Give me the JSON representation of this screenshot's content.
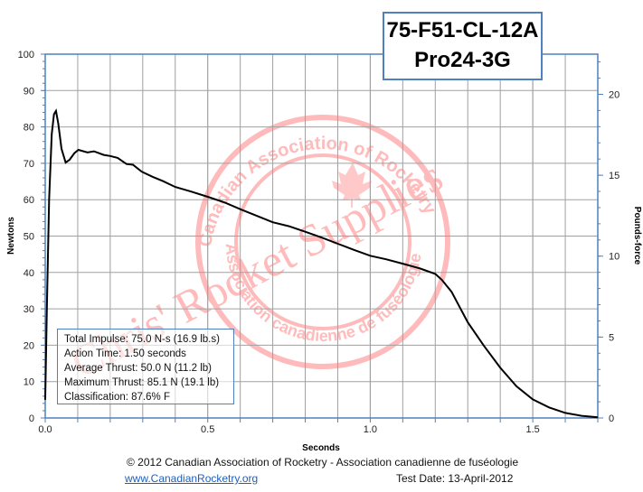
{
  "title": {
    "line1": "75-F51-CL-12A",
    "line2": "Pro24-3G"
  },
  "info": [
    "Total Impulse: 75.0 N-s (16.9 lb.s)",
    "Action Time: 1.50 seconds",
    "Average Thrust: 50.0 N (11.2 lb)",
    "Maximum Thrust: 85.1 N (19.1 lb)",
    "Classification: 87.6% F"
  ],
  "footer": {
    "copyright": "© 2012 Canadian Association of Rocketry - Association canadienne de fuséologie",
    "link": "www.CanadianRocketry.org",
    "test_date": "Test  Date: 13-April-2012"
  },
  "watermark": {
    "outer_text": "Canadian Association of Rocketry",
    "inner_text": "Association canadienne de fuséologie",
    "diagonal_text": "Chris' Rocket Supplies",
    "color": "#ff8080"
  },
  "colors": {
    "axis": "#4f81bd",
    "grid": "#a0a0a0",
    "line": "#000000"
  },
  "chart_data": {
    "type": "line",
    "xlabel": "Seconds",
    "ylabel": "Newtons",
    "y2label": "Pounds-force",
    "xlim": [
      0,
      1.7
    ],
    "ylim": [
      0,
      100
    ],
    "y2lim": [
      0,
      22.48
    ],
    "grid": true,
    "xticks": [
      "0.0",
      "0.5",
      "1.0",
      "1.5"
    ],
    "xtick_values": [
      0,
      0.5,
      1.0,
      1.5
    ],
    "yticks": [
      "0",
      "10",
      "20",
      "30",
      "40",
      "50",
      "60",
      "70",
      "80",
      "90",
      "100"
    ],
    "y2ticks": [
      "0",
      "5",
      "10",
      "15",
      "20"
    ],
    "series": [
      {
        "x": [
          0,
          0.005,
          0.012,
          0.02,
          0.027,
          0.033,
          0.04,
          0.05,
          0.063,
          0.075,
          0.09,
          0.102,
          0.13,
          0.15,
          0.18,
          0.2,
          0.223,
          0.25,
          0.27,
          0.297,
          0.33,
          0.362,
          0.4,
          0.45,
          0.5,
          0.55,
          0.6,
          0.65,
          0.7,
          0.75,
          0.8,
          0.85,
          0.9,
          0.95,
          1.0,
          1.05,
          1.1,
          1.15,
          1.2,
          1.22,
          1.25,
          1.3,
          1.35,
          1.4,
          1.45,
          1.5,
          1.55,
          1.6,
          1.65,
          1.7
        ],
        "y": [
          5,
          30,
          60,
          78,
          83.5,
          84.4,
          81,
          74,
          70.2,
          71,
          72.8,
          73.7,
          73,
          73.3,
          72.3,
          72,
          71.5,
          69.8,
          69.6,
          67.7,
          66.3,
          65.1,
          63.5,
          62.2,
          60.8,
          59.3,
          57.4,
          55.6,
          53.8,
          52.7,
          51.2,
          49.6,
          47.9,
          46.2,
          44.6,
          43.6,
          42.4,
          41.2,
          39.6,
          38,
          34.7,
          26.3,
          19.8,
          13.8,
          8.7,
          5.1,
          2.9,
          1.4,
          0.6,
          0.2
        ]
      }
    ]
  }
}
